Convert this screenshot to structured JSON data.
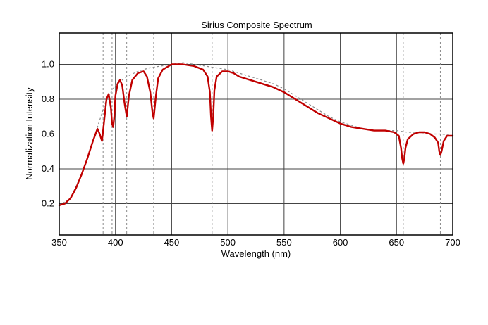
{
  "chart_data": {
    "type": "line",
    "title": "Sirius Composite Spectrum",
    "xlabel": "Wavelength (nm)",
    "ylabel": "Normalization Intensity",
    "xlim": [
      350,
      700
    ],
    "ylim": [
      0.02,
      1.18
    ],
    "grid": true,
    "x_ticks": [
      350,
      400,
      450,
      500,
      550,
      600,
      650,
      700
    ],
    "y_ticks": [
      0.2,
      0.4,
      0.6,
      0.8,
      1.0
    ],
    "y_tick_labels": [
      "0.2",
      "0.4",
      "0.6",
      "0.8",
      "1.0"
    ],
    "absorption_line_markers": [
      389,
      397,
      410,
      434,
      486,
      656,
      689
    ],
    "colors": {
      "spectrum": "#c00000",
      "envelope": "#8a8a8a",
      "grid": "#444444"
    },
    "series": [
      {
        "style": "solid-red",
        "x": [
          350,
          355,
          360,
          365,
          370,
          375,
          380,
          384,
          386,
          388,
          390,
          392,
          394,
          396,
          397,
          398,
          399,
          400,
          402,
          404,
          406,
          408,
          410,
          412,
          415,
          420,
          425,
          428,
          431,
          433,
          434,
          436,
          438,
          442,
          450,
          460,
          470,
          478,
          482,
          484,
          485,
          486,
          487,
          488,
          490,
          495,
          500,
          505,
          510,
          520,
          530,
          540,
          550,
          560,
          570,
          580,
          590,
          600,
          610,
          620,
          630,
          640,
          648,
          652,
          654,
          655,
          656,
          657,
          658,
          660,
          665,
          670,
          675,
          680,
          684,
          687,
          688,
          689,
          690,
          692,
          695,
          700
        ],
        "y": [
          0.19,
          0.2,
          0.23,
          0.29,
          0.37,
          0.46,
          0.56,
          0.63,
          0.6,
          0.56,
          0.68,
          0.8,
          0.83,
          0.75,
          0.66,
          0.64,
          0.7,
          0.82,
          0.89,
          0.91,
          0.88,
          0.78,
          0.7,
          0.82,
          0.91,
          0.95,
          0.96,
          0.93,
          0.84,
          0.72,
          0.69,
          0.82,
          0.92,
          0.97,
          1.0,
          1.0,
          0.99,
          0.97,
          0.93,
          0.84,
          0.7,
          0.62,
          0.7,
          0.85,
          0.93,
          0.96,
          0.96,
          0.95,
          0.93,
          0.91,
          0.89,
          0.87,
          0.84,
          0.8,
          0.76,
          0.72,
          0.69,
          0.66,
          0.64,
          0.63,
          0.62,
          0.62,
          0.61,
          0.59,
          0.52,
          0.46,
          0.43,
          0.46,
          0.52,
          0.57,
          0.6,
          0.61,
          0.61,
          0.6,
          0.58,
          0.55,
          0.5,
          0.48,
          0.5,
          0.56,
          0.59,
          0.59
        ]
      },
      {
        "style": "dashed-gray",
        "x": [
          350,
          360,
          370,
          380,
          386,
          392,
          400,
          410,
          420,
          430,
          440,
          450,
          460,
          470,
          480,
          490,
          500,
          510,
          520,
          530,
          540,
          550,
          560,
          570,
          580,
          590,
          600,
          610,
          620,
          630,
          640,
          650,
          660,
          670,
          680,
          690,
          700
        ],
        "y": [
          0.19,
          0.23,
          0.37,
          0.56,
          0.68,
          0.8,
          0.88,
          0.93,
          0.96,
          0.98,
          0.99,
          1.0,
          1.01,
          1.0,
          0.99,
          0.98,
          0.97,
          0.95,
          0.93,
          0.91,
          0.89,
          0.86,
          0.82,
          0.78,
          0.74,
          0.7,
          0.67,
          0.65,
          0.63,
          0.62,
          0.62,
          0.62,
          0.61,
          0.61,
          0.6,
          0.6,
          0.59
        ]
      }
    ]
  }
}
